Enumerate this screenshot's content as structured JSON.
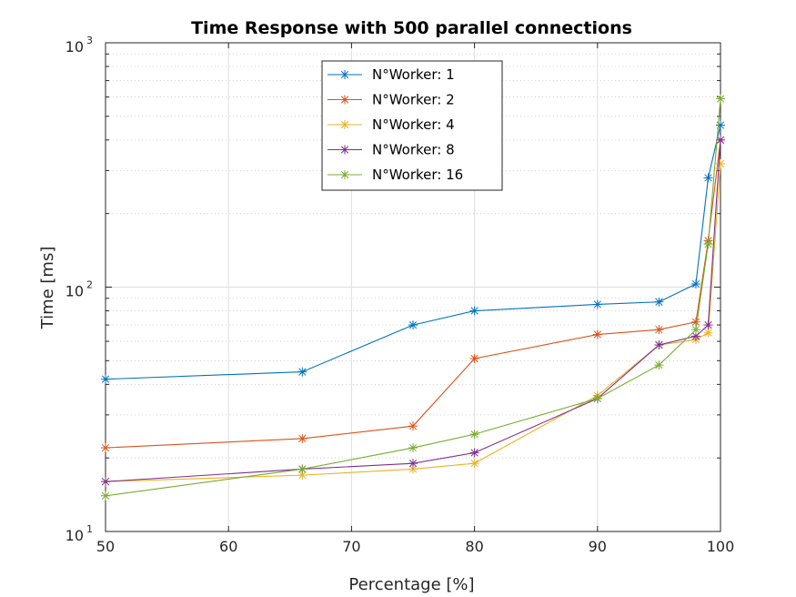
{
  "chart_data": {
    "type": "line",
    "title": "Time Response with 500 parallel connections",
    "xlabel": "Percentage [%]",
    "ylabel": "Time [ms]",
    "xlim": [
      50,
      100
    ],
    "ylim": [
      10,
      1000
    ],
    "yscale": "log",
    "grid": true,
    "legend_position": "top-center",
    "x_ticks": [
      "50",
      "60",
      "70",
      "80",
      "90",
      "100"
    ],
    "y_ticks": [
      {
        "base": "10",
        "exp": "1"
      },
      {
        "base": "10",
        "exp": "2"
      },
      {
        "base": "10",
        "exp": "3"
      }
    ],
    "x": [
      50,
      66,
      75,
      80,
      90,
      95,
      98,
      99,
      100
    ],
    "series": [
      {
        "name": "N°Worker: 1",
        "color": "#0072BD",
        "values": [
          42,
          45,
          70,
          80,
          85,
          87,
          103,
          280,
          460
        ]
      },
      {
        "name": "N°Worker: 2",
        "color": "#D95319",
        "values": [
          22,
          24,
          27,
          51,
          64,
          67,
          72,
          155,
          400
        ]
      },
      {
        "name": "N°Worker: 4",
        "color": "#EDB120",
        "values": [
          16,
          17,
          18,
          19,
          36,
          58,
          61,
          65,
          320
        ]
      },
      {
        "name": "N°Worker: 8",
        "color": "#7E2F8E",
        "values": [
          16,
          18,
          19,
          21,
          35,
          58,
          63,
          70,
          400
        ]
      },
      {
        "name": "N°Worker: 16",
        "color": "#77AC30",
        "values": [
          14,
          18,
          22,
          25,
          35,
          48,
          67,
          150,
          590
        ]
      }
    ]
  }
}
